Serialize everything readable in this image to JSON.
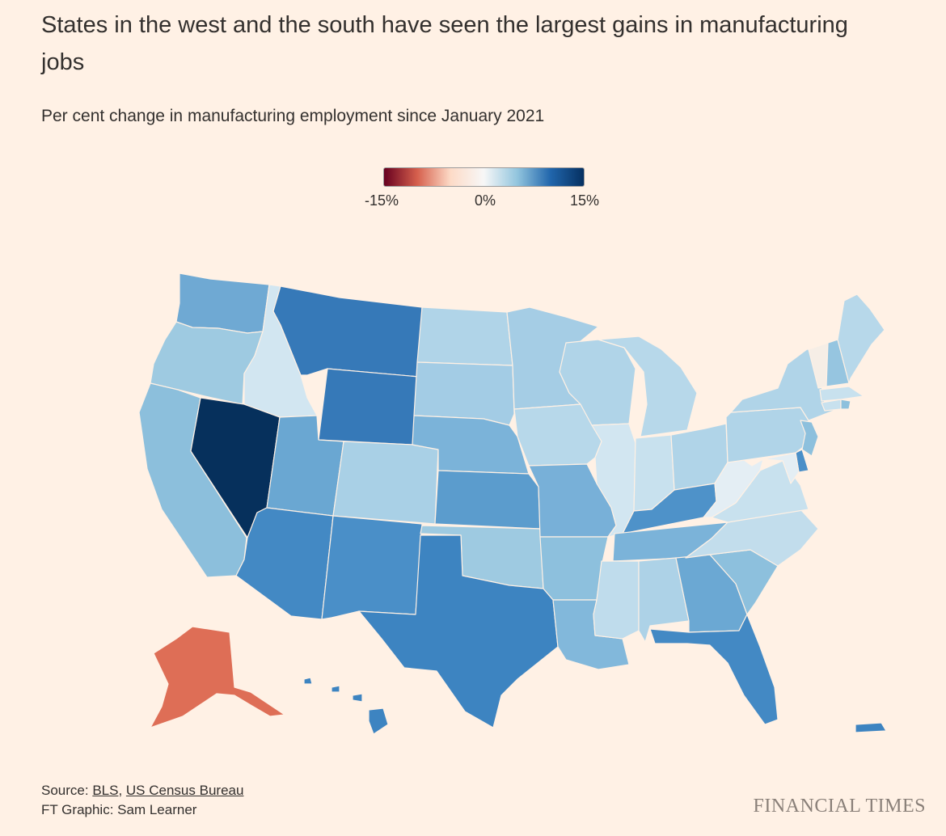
{
  "title": "States in the west and the south have seen the largest gains in manufacturing jobs",
  "subtitle": "Per cent change in manufacturing employment since January 2021",
  "legend": {
    "min_label": "-15%",
    "mid_label": "0%",
    "max_label": "15%",
    "colors": [
      "#67001f",
      "#d6604d",
      "#fddbc7",
      "#f7f7f7",
      "#92c5de",
      "#2166ac",
      "#053061"
    ]
  },
  "source": {
    "prefix": "Source: ",
    "link1": "BLS",
    "sep": ", ",
    "link2": "US Census Bureau",
    "credit": "FT Graphic: Sam Learner"
  },
  "brand": "FINANCIAL TIMES",
  "map_data": {
    "scale_min": -15,
    "scale_max": 15,
    "regions": [
      {
        "name": "WA",
        "color": "#6fa9d3"
      },
      {
        "name": "OR",
        "color": "#9ecae1"
      },
      {
        "name": "CA",
        "color": "#8cbfdc"
      },
      {
        "name": "ID",
        "color": "#d2e6f1"
      },
      {
        "name": "NV",
        "color": "#06305c"
      },
      {
        "name": "MT",
        "color": "#3679b8"
      },
      {
        "name": "WY",
        "color": "#3679b8"
      },
      {
        "name": "UT",
        "color": "#6aa7d2"
      },
      {
        "name": "AZ",
        "color": "#4389c4"
      },
      {
        "name": "CO",
        "color": "#a9d0e6"
      },
      {
        "name": "NM",
        "color": "#4a8fc8"
      },
      {
        "name": "ND",
        "color": "#b0d4e8"
      },
      {
        "name": "SD",
        "color": "#a3cce5"
      },
      {
        "name": "NE",
        "color": "#7bb3d9"
      },
      {
        "name": "KS",
        "color": "#5b9ccd"
      },
      {
        "name": "OK",
        "color": "#9ecae1"
      },
      {
        "name": "TX",
        "color": "#3d84c1"
      },
      {
        "name": "MN",
        "color": "#a5cde5"
      },
      {
        "name": "IA",
        "color": "#b7d8ea"
      },
      {
        "name": "MO",
        "color": "#78b0d8"
      },
      {
        "name": "AR",
        "color": "#8dc0dd"
      },
      {
        "name": "LA",
        "color": "#82b8db"
      },
      {
        "name": "WI",
        "color": "#b0d4e8"
      },
      {
        "name": "IL",
        "color": "#d2e6f1"
      },
      {
        "name": "MI",
        "color": "#b7d8ea"
      },
      {
        "name": "IN",
        "color": "#c8e1ee"
      },
      {
        "name": "OH",
        "color": "#b0d4e8"
      },
      {
        "name": "KY",
        "color": "#4e92c9"
      },
      {
        "name": "TN",
        "color": "#7bb3d9"
      },
      {
        "name": "MS",
        "color": "#bfdcec"
      },
      {
        "name": "AL",
        "color": "#add2e7"
      },
      {
        "name": "GA",
        "color": "#6ba8d3"
      },
      {
        "name": "FL",
        "color": "#4389c4"
      },
      {
        "name": "SC",
        "color": "#8dc0dd"
      },
      {
        "name": "NC",
        "color": "#c2ddec"
      },
      {
        "name": "VA",
        "color": "#c8e1ee"
      },
      {
        "name": "WV",
        "color": "#e4eef4"
      },
      {
        "name": "PA",
        "color": "#b0d4e8"
      },
      {
        "name": "NY",
        "color": "#b0d4e8"
      },
      {
        "name": "ME",
        "color": "#b7d8ea"
      },
      {
        "name": "VT",
        "color": "#f6eee6"
      },
      {
        "name": "NH",
        "color": "#96c5e0"
      },
      {
        "name": "DE",
        "color": "#4a8fc8"
      },
      {
        "name": "AK",
        "color": "#de6e56"
      },
      {
        "name": "HI",
        "color": "#3d84c1"
      },
      {
        "name": "PR",
        "color": "#3d84c1"
      }
    ]
  }
}
